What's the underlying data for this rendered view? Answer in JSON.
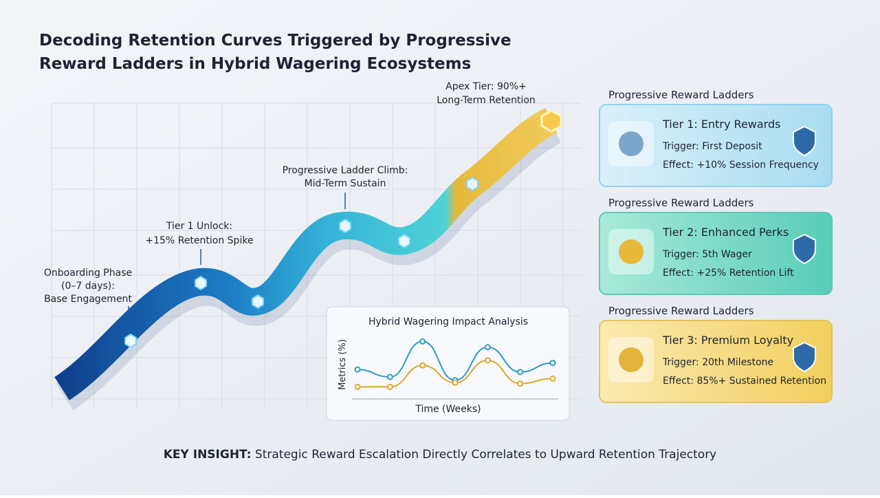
{
  "title": [
    "Decoding Retention Curves Triggered by Progressive",
    "Reward Ladders in Hybrid Wagering Ecosystems"
  ],
  "curve_annotations": [
    {
      "lines": [
        "Onboarding Phase",
        "(0–7 days):",
        "Base Engagement"
      ]
    },
    {
      "lines": [
        "Tier 1 Unlock:",
        "+15% Retention Spike"
      ]
    },
    {
      "lines": [
        "Progressive Ladder Climb:",
        "Mid-Term Sustain"
      ]
    },
    {
      "lines": [
        "Apex Tier: 90%+",
        "Long-Term Retention"
      ]
    }
  ],
  "inset_chart": {
    "type": "line",
    "title": "Hybrid Wagering Impact Analysis",
    "x_label": "Time (Weeks)",
    "y_label": "Metrics (%)",
    "categories": [
      null,
      null,
      null,
      null,
      null,
      null,
      null
    ],
    "ylim": [
      0,
      100
    ],
    "series": [
      {
        "color": "#2a9bc4",
        "values": [
          44,
          35,
          78,
          31,
          71,
          41,
          52
        ]
      },
      {
        "color": "#e0a526",
        "values": [
          23,
          23,
          49,
          28,
          55,
          27,
          33
        ]
      }
    ]
  },
  "cards": [
    {
      "heading": "Progressive Reward Ladders",
      "title": "Tier 1: Entry Rewards",
      "trigger": "Trigger: First Deposit",
      "effect": "Effect: +10% Session Frequency"
    },
    {
      "heading": "Progressive Reward Ladders",
      "title": "Tier 2: Enhanced Perks",
      "trigger": "Trigger: 5th Wager",
      "effect": "Effect: +25% Retention Lift"
    },
    {
      "heading": "Progressive Reward Ladders",
      "title": "Tier 3: Premium Loyalty",
      "trigger": "Trigger: 20th Milestone",
      "effect": "Effect: 85%+ Sustained Retention"
    }
  ],
  "key_insight": {
    "label": "KEY INSIGHT:",
    "text": " Strategic Reward Escalation Directly Correlates to Upward Retention Trajectory"
  }
}
